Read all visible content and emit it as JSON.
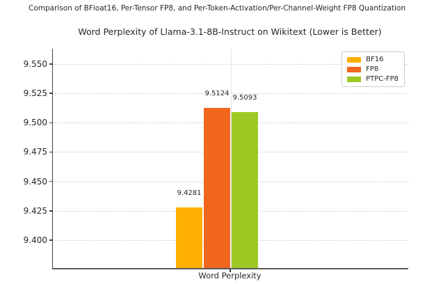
{
  "suptitle": "Comparison of BFloat16, Per-Tensor FP8, and Per-Token-Activation/Per-Channel-Weight FP8 Quantization",
  "chart_data": {
    "type": "bar",
    "title": "Word Perplexity of Llama-3.1-8B-Instruct on Wikitext (Lower is Better)",
    "xlabel": "Word Perplexity",
    "ylabel": "",
    "categories": [
      "Word Perplexity"
    ],
    "series": [
      {
        "name": "BF16",
        "values": [
          9.4281
        ],
        "value_label": "9.4281",
        "color": "#FFB000"
      },
      {
        "name": "FP8",
        "values": [
          9.5124
        ],
        "value_label": "9.5124",
        "color": "#F2661D"
      },
      {
        "name": "PTPC-FP8",
        "values": [
          9.5093
        ],
        "value_label": "9.5093",
        "color": "#9DC924"
      }
    ],
    "ylim": [
      9.3766,
      9.563
    ],
    "yticks": [
      9.4,
      9.425,
      9.45,
      9.475,
      9.5,
      9.525,
      9.55
    ],
    "ytick_labels": [
      "9.400",
      "9.425",
      "9.450",
      "9.475",
      "9.500",
      "9.525",
      "9.550"
    ],
    "grid": {
      "style": "dotted",
      "color": "#c9c9c9",
      "horizontal": true,
      "vertical_at_category": true
    },
    "legend_position": "upper right",
    "colors": {
      "axis": "#3f3f3f",
      "text": "#262626",
      "background": "#ffffff"
    }
  }
}
